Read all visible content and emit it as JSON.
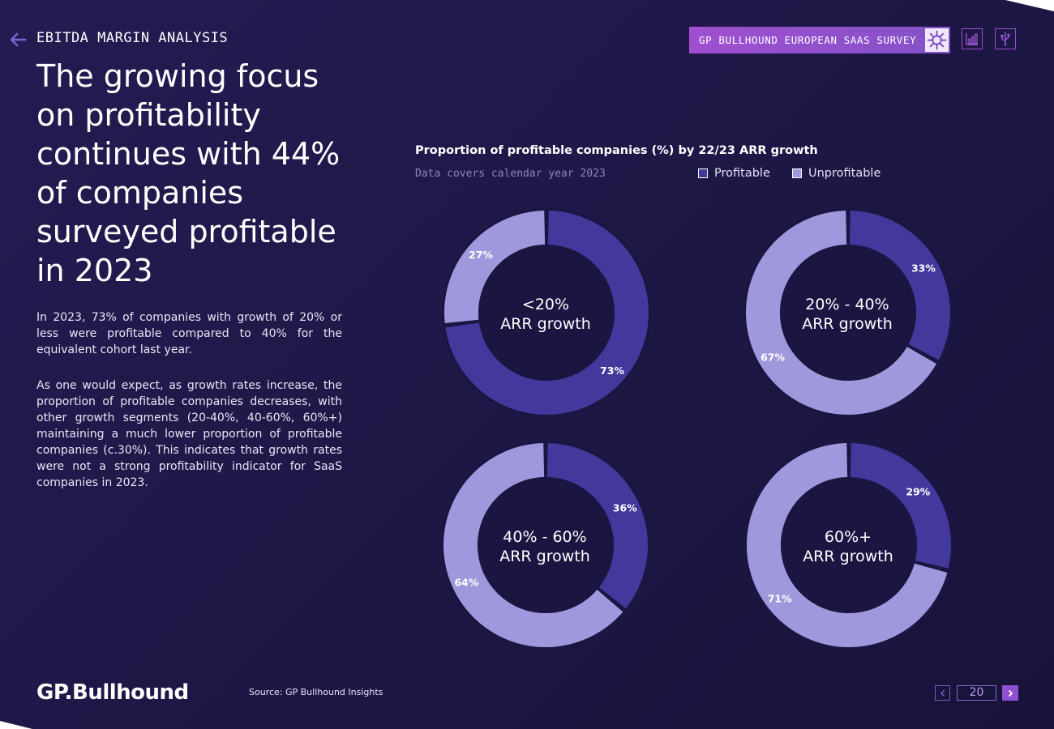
{
  "header": {
    "section_title": "EBITDA MARGIN ANALYSIS",
    "survey_badge": "GP BULLHOUND EUROPEAN SAAS SURVEY",
    "icons": [
      "back-arrow-icon",
      "virus-icon",
      "bar-chart-icon",
      "usb-icon"
    ]
  },
  "main": {
    "headline": "The growing focus on profitability continues with 44% of companies surveyed profitable in 2023",
    "paragraph_1": "In 2023, 73% of companies with growth of 20% or less were profitable compared to 40% for the equivalent cohort last year.",
    "paragraph_2": "As one would expect, as growth rates increase, the proportion of profitable companies decreases, with other growth segments (20-40%, 40-60%, 60%+) maintaining a much lower proportion of profitable companies (c.30%). This indicates that growth rates were not a strong profitability indicator for SaaS companies in 2023."
  },
  "chart_data": {
    "type": "pie",
    "title": "Proportion of profitable companies (%) by 22/23 ARR growth",
    "subtitle": "Data covers calendar year 2023",
    "legend": [
      "Profitable",
      "Unprofitable"
    ],
    "colors": {
      "profitable": "#43399c",
      "unprofitable": "#9f98dc"
    },
    "charts": [
      {
        "label_line1": "<20%",
        "label_line2": "ARR growth",
        "profitable": 73,
        "unprofitable": 27,
        "profitable_label": "73%",
        "unprofitable_label": "27%"
      },
      {
        "label_line1": "20% - 40%",
        "label_line2": "ARR growth",
        "profitable": 33,
        "unprofitable": 67,
        "profitable_label": "33%",
        "unprofitable_label": "67%"
      },
      {
        "label_line1": "40% - 60%",
        "label_line2": "ARR growth",
        "profitable": 36,
        "unprofitable": 64,
        "profitable_label": "36%",
        "unprofitable_label": "64%"
      },
      {
        "label_line1": "60%+",
        "label_line2": "ARR growth",
        "profitable": 29,
        "unprofitable": 71,
        "profitable_label": "29%",
        "unprofitable_label": "71%"
      }
    ]
  },
  "footer": {
    "logo": "GP.Bullhound",
    "source": "Source: GP Bullhound Insights",
    "page_number": "20"
  }
}
